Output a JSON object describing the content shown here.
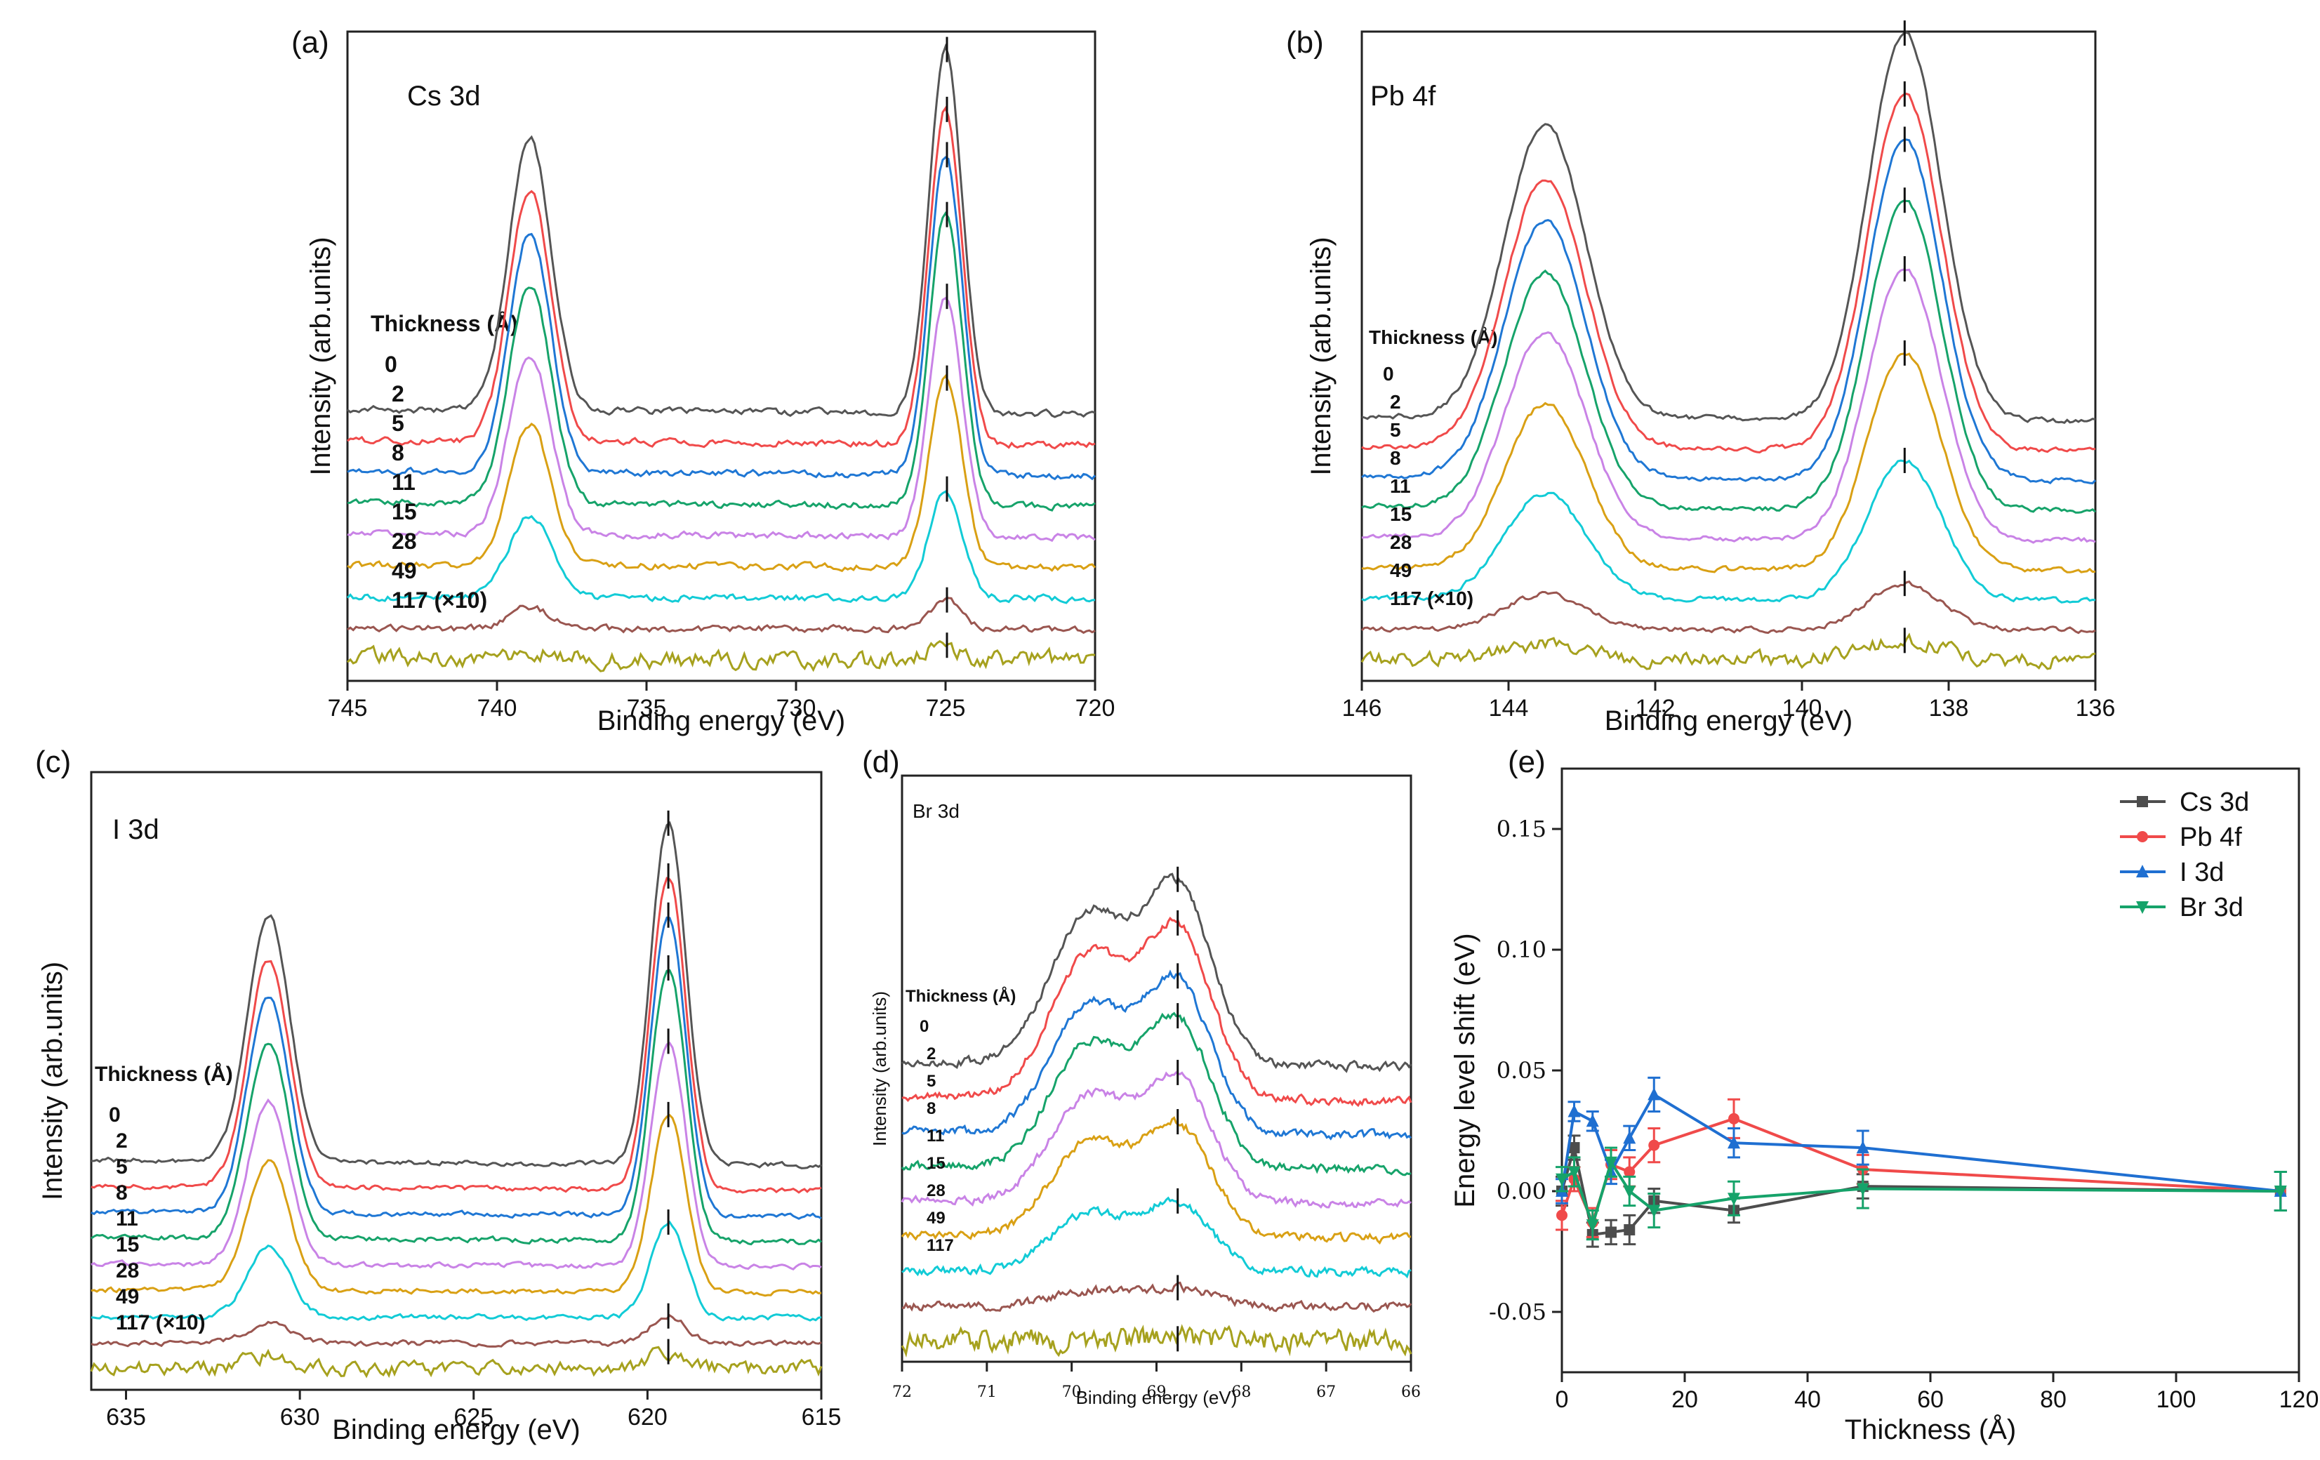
{
  "chart_data": [
    {
      "panel": "(a)",
      "type": "line",
      "element": "Cs 3d",
      "xlabel": "Binding energy (eV)",
      "ylabel": "Intensity (arb.units)",
      "xlim": [
        745,
        720
      ],
      "xticks": [
        "745",
        "740",
        "735",
        "730",
        "725",
        "720"
      ],
      "legend_title": "Thickness (Å)",
      "peaks_eV": [
        738.9,
        725.0
      ],
      "peak_heights": [
        1.05,
        1.4
      ],
      "peak_widths": [
        0.7,
        0.55
      ],
      "series": [
        {
          "name": "0",
          "color": "#555555",
          "amplitude": 1.0
        },
        {
          "name": "2",
          "color": "#f04a4a",
          "amplitude": 0.92
        },
        {
          "name": "5",
          "color": "#1f77d4",
          "amplitude": 0.88
        },
        {
          "name": "8",
          "color": "#16a36a",
          "amplitude": 0.8
        },
        {
          "name": "11",
          "color": "#c983e6",
          "amplitude": 0.66
        },
        {
          "name": "15",
          "color": "#d9a014",
          "amplitude": 0.52
        },
        {
          "name": "28",
          "color": "#12cbd6",
          "amplitude": 0.3
        },
        {
          "name": "49",
          "color": "#9a5650",
          "amplitude": 0.08
        },
        {
          "name": "117 (×10)",
          "color": "#a6a11e",
          "amplitude": 0.04
        }
      ]
    },
    {
      "panel": "(b)",
      "type": "line",
      "element": "Pb 4f",
      "xlabel": "Binding energy (eV)",
      "ylabel": "Intensity (arb.units)",
      "xlim": [
        146,
        136
      ],
      "xticks": [
        "146",
        "144",
        "142",
        "140",
        "138",
        "136"
      ],
      "legend_title": "Thickness (Å)",
      "peaks_eV": [
        143.5,
        138.6
      ],
      "peak_heights": [
        1.1,
        1.45
      ],
      "peak_widths": [
        0.55,
        0.5
      ],
      "series": [
        {
          "name": "0",
          "color": "#555555",
          "amplitude": 1.0
        },
        {
          "name": "2",
          "color": "#f04a4a",
          "amplitude": 0.92
        },
        {
          "name": "5",
          "color": "#1f77d4",
          "amplitude": 0.88
        },
        {
          "name": "8",
          "color": "#16a36a",
          "amplitude": 0.8
        },
        {
          "name": "11",
          "color": "#c983e6",
          "amplitude": 0.7
        },
        {
          "name": "15",
          "color": "#d9a014",
          "amplitude": 0.56
        },
        {
          "name": "28",
          "color": "#12cbd6",
          "amplitude": 0.36
        },
        {
          "name": "49",
          "color": "#9a5650",
          "amplitude": 0.12
        },
        {
          "name": "117 (×10)",
          "color": "#a6a11e",
          "amplitude": 0.05
        }
      ]
    },
    {
      "panel": "(c)",
      "type": "line",
      "element": "I 3d",
      "xlabel": "Binding energy (eV)",
      "ylabel": "Intensity (arb.units)",
      "xlim": [
        636,
        615
      ],
      "xticks": [
        "635",
        "630",
        "625",
        "620",
        "615"
      ],
      "legend_title": "Thickness (Å)",
      "peaks_eV": [
        630.9,
        619.4
      ],
      "peak_heights": [
        1.05,
        1.45
      ],
      "peak_widths": [
        0.6,
        0.5
      ],
      "series": [
        {
          "name": "0",
          "color": "#555555",
          "amplitude": 1.0
        },
        {
          "name": "2",
          "color": "#f04a4a",
          "amplitude": 0.92
        },
        {
          "name": "5",
          "color": "#1f77d4",
          "amplitude": 0.88
        },
        {
          "name": "8",
          "color": "#16a36a",
          "amplitude": 0.8
        },
        {
          "name": "11",
          "color": "#c983e6",
          "amplitude": 0.66
        },
        {
          "name": "15",
          "color": "#d9a014",
          "amplitude": 0.52
        },
        {
          "name": "28",
          "color": "#12cbd6",
          "amplitude": 0.28
        },
        {
          "name": "49",
          "color": "#9a5650",
          "amplitude": 0.08
        },
        {
          "name": "117 (×10)",
          "color": "#a6a11e",
          "amplitude": 0.05
        }
      ]
    },
    {
      "panel": "(d)",
      "type": "line",
      "element": "Br 3d",
      "xlabel": "Binding energy (eV)",
      "ylabel": "Intensity (arb.units)",
      "xlim": [
        72,
        66
      ],
      "xticks": [
        "72",
        "71",
        "70",
        "69",
        "68",
        "67",
        "66"
      ],
      "legend_title": "Thickness (Å)",
      "peaks_eV": [
        69.8,
        68.75
      ],
      "peak_heights": [
        0.85,
        1.0
      ],
      "peak_widths": [
        0.45,
        0.4
      ],
      "series": [
        {
          "name": "0",
          "color": "#555555",
          "amplitude": 1.0
        },
        {
          "name": "2",
          "color": "#f04a4a",
          "amplitude": 0.95
        },
        {
          "name": "5",
          "color": "#1f77d4",
          "amplitude": 0.85
        },
        {
          "name": "8",
          "color": "#16a36a",
          "amplitude": 0.82
        },
        {
          "name": "11",
          "color": "#c983e6",
          "amplitude": 0.7
        },
        {
          "name": "15",
          "color": "#d9a014",
          "amplitude": 0.62
        },
        {
          "name": "28",
          "color": "#12cbd6",
          "amplitude": 0.38
        },
        {
          "name": "49",
          "color": "#9a5650",
          "amplitude": 0.1
        },
        {
          "name": "117",
          "color": "#a6a11e",
          "amplitude": 0.01
        }
      ]
    },
    {
      "panel": "(e)",
      "type": "line",
      "xlabel": "Thickness (Å)",
      "ylabel": "Energy level shift (eV)",
      "xlim": [
        0,
        120
      ],
      "ylim": [
        -0.075,
        0.175
      ],
      "xticks": [
        "0",
        "20",
        "40",
        "60",
        "80",
        "100",
        "120"
      ],
      "yticks": [
        "-0.05",
        "0.00",
        "0.05",
        "0.10",
        "0.15"
      ],
      "x": [
        0,
        2,
        5,
        8,
        11,
        15,
        28,
        49,
        117
      ],
      "series": [
        {
          "name": "Cs 3d",
          "color": "#4d4d4d",
          "marker": "square",
          "values": [
            0.0,
            0.018,
            -0.018,
            -0.017,
            -0.016,
            -0.004,
            -0.008,
            0.002,
            0.0
          ],
          "errors": [
            0.006,
            0.005,
            0.005,
            0.005,
            0.006,
            0.005,
            0.005,
            0.005,
            0.008
          ]
        },
        {
          "name": "Pb 4f",
          "color": "#f04a4a",
          "marker": "circle",
          "values": [
            -0.01,
            0.005,
            -0.013,
            0.011,
            0.008,
            0.019,
            0.03,
            0.009,
            0.0
          ],
          "errors": [
            0.006,
            0.005,
            0.006,
            0.006,
            0.006,
            0.007,
            0.008,
            0.006,
            0.008
          ]
        },
        {
          "name": "I 3d",
          "color": "#1f6fd1",
          "marker": "triangle-up",
          "values": [
            0.0,
            0.033,
            0.029,
            0.008,
            0.022,
            0.04,
            0.02,
            0.018,
            0.0
          ],
          "errors": [
            0.005,
            0.004,
            0.004,
            0.005,
            0.005,
            0.007,
            0.006,
            0.007,
            0.008
          ]
        },
        {
          "name": "Br 3d",
          "color": "#16a36a",
          "marker": "triangle-down",
          "values": [
            0.005,
            0.008,
            -0.014,
            0.012,
            0.0,
            -0.008,
            -0.003,
            0.001,
            0.0
          ],
          "errors": [
            0.005,
            0.006,
            0.006,
            0.006,
            0.006,
            0.007,
            0.007,
            0.008,
            0.008
          ]
        }
      ]
    }
  ]
}
